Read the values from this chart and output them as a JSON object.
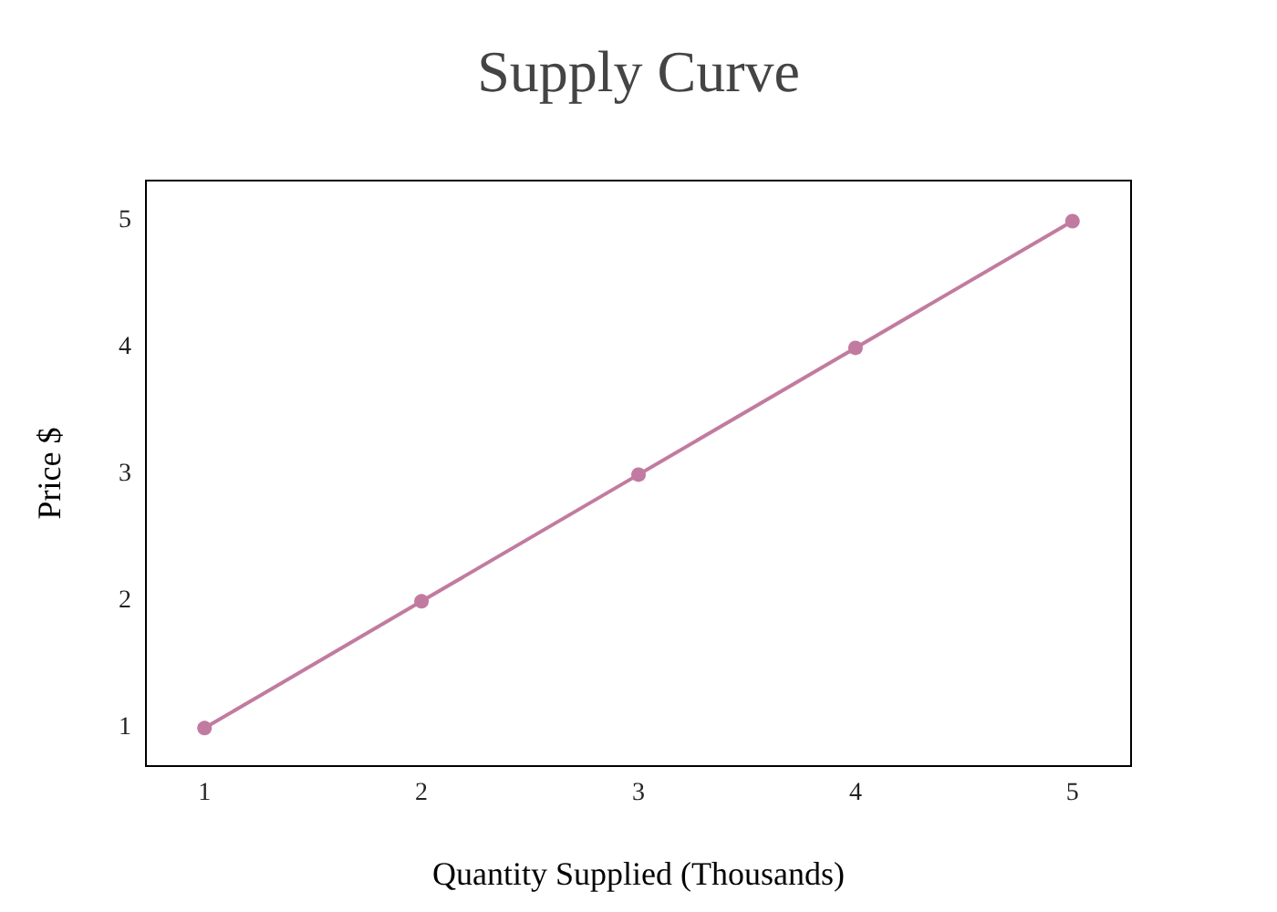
{
  "chart_data": {
    "type": "line",
    "title": "Supply Curve",
    "xlabel": "Quantity Supplied (Thousands)",
    "ylabel": "Price $",
    "x": [
      1,
      2,
      3,
      4,
      5
    ],
    "series": [
      {
        "color": "#c27ba0",
        "values": [
          1,
          2,
          3,
          4,
          5
        ]
      }
    ],
    "xlim": [
      0.73,
      5.27
    ],
    "ylim": [
      0.7,
      5.32
    ],
    "xticks": [
      1,
      2,
      3,
      4,
      5
    ],
    "yticks": [
      1,
      2,
      3,
      4,
      5
    ],
    "grid": false,
    "marker": "circle",
    "line_style": "solid"
  }
}
